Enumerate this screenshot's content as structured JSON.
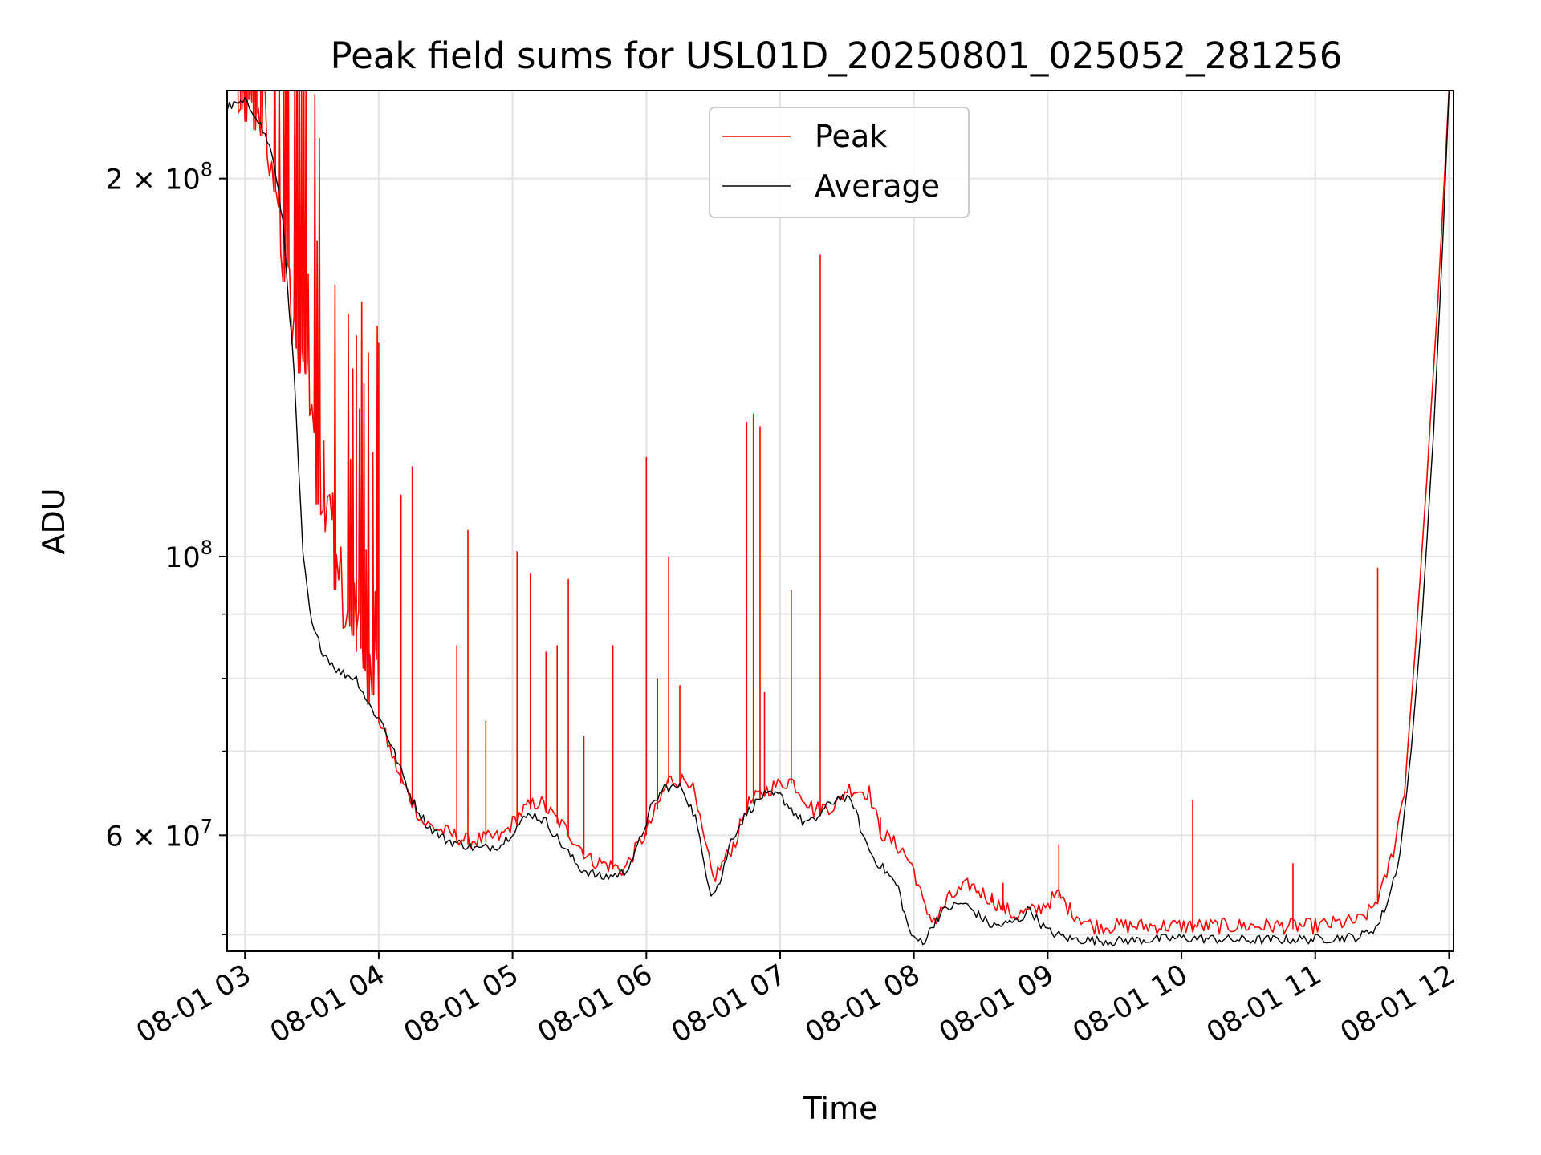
{
  "chart_data": {
    "type": "line",
    "title": "Peak field sums for USL01D_20250801_025052_281256",
    "xlabel": "Time",
    "ylabel": "ADU",
    "yscale": "log",
    "grid": true,
    "legend_position": "top-center",
    "xlim": [
      "2025-08-01 02:52",
      "2025-08-01 12:02"
    ],
    "ylim": [
      48500000,
      235000000
    ],
    "x_ticks": [
      {
        "value": "2025-08-01 03:00",
        "label": "08-01 03"
      },
      {
        "value": "2025-08-01 04:00",
        "label": "08-01 04"
      },
      {
        "value": "2025-08-01 05:00",
        "label": "08-01 05"
      },
      {
        "value": "2025-08-01 06:00",
        "label": "08-01 06"
      },
      {
        "value": "2025-08-01 07:00",
        "label": "08-01 07"
      },
      {
        "value": "2025-08-01 08:00",
        "label": "08-01 08"
      },
      {
        "value": "2025-08-01 09:00",
        "label": "08-01 09"
      },
      {
        "value": "2025-08-01 10:00",
        "label": "08-01 10"
      },
      {
        "value": "2025-08-01 11:00",
        "label": "08-01 11"
      },
      {
        "value": "2025-08-01 12:00",
        "label": "08-01 12"
      }
    ],
    "y_ticks_major": [
      {
        "value": 60000000,
        "base": "6 × 10",
        "exp": "7"
      },
      {
        "value": 100000000,
        "base": "10",
        "exp": "8"
      },
      {
        "value": 200000000,
        "base": "2 × 10",
        "exp": "8"
      }
    ],
    "y_ticks_minor": [
      50000000,
      70000000,
      80000000,
      90000000
    ],
    "series": [
      {
        "name": "Peak",
        "color": "#ff0000",
        "baseline": [
          [
            "2025-08-01 02:52",
            230000000
          ],
          [
            "2025-08-01 03:00",
            230000000
          ],
          [
            "2025-08-01 03:10",
            215000000
          ],
          [
            "2025-08-01 03:20",
            160000000
          ],
          [
            "2025-08-01 03:30",
            120000000
          ],
          [
            "2025-08-01 03:40",
            95000000
          ],
          [
            "2025-08-01 03:50",
            84000000
          ],
          [
            "2025-08-01 04:00",
            74000000
          ],
          [
            "2025-08-01 04:10",
            66000000
          ],
          [
            "2025-08-01 04:20",
            61000000
          ],
          [
            "2025-08-01 04:40",
            59000000
          ],
          [
            "2025-08-01 04:55",
            59500000
          ],
          [
            "2025-08-01 05:05",
            62500000
          ],
          [
            "2025-08-01 05:12",
            63500000
          ],
          [
            "2025-08-01 05:25",
            60000000
          ],
          [
            "2025-08-01 05:35",
            57000000
          ],
          [
            "2025-08-01 05:50",
            56000000
          ],
          [
            "2025-08-01 06:00",
            60000000
          ],
          [
            "2025-08-01 06:10",
            66000000
          ],
          [
            "2025-08-01 06:20",
            66000000
          ],
          [
            "2025-08-01 06:25",
            60000000
          ],
          [
            "2025-08-01 06:30",
            55000000
          ],
          [
            "2025-08-01 06:40",
            59000000
          ],
          [
            "2025-08-01 06:45",
            63000000
          ],
          [
            "2025-08-01 06:55",
            65000000
          ],
          [
            "2025-08-01 07:05",
            66000000
          ],
          [
            "2025-08-01 07:15",
            62500000
          ],
          [
            "2025-08-01 07:25",
            63000000
          ],
          [
            "2025-08-01 07:30",
            65000000
          ],
          [
            "2025-08-01 07:40",
            64500000
          ],
          [
            "2025-08-01 07:45",
            60000000
          ],
          [
            "2025-08-01 07:55",
            58000000
          ],
          [
            "2025-08-01 08:00",
            56000000
          ],
          [
            "2025-08-01 08:05",
            52000000
          ],
          [
            "2025-08-01 08:10",
            51000000
          ],
          [
            "2025-08-01 08:15",
            53000000
          ],
          [
            "2025-08-01 08:25",
            54500000
          ],
          [
            "2025-08-01 08:35",
            53000000
          ],
          [
            "2025-08-01 08:45",
            51500000
          ],
          [
            "2025-08-01 08:55",
            52000000
          ],
          [
            "2025-08-01 09:05",
            53500000
          ],
          [
            "2025-08-01 09:10",
            52000000
          ],
          [
            "2025-08-01 09:20",
            50500000
          ],
          [
            "2025-08-01 10:00",
            50500000
          ],
          [
            "2025-08-01 11:00",
            50500000
          ],
          [
            "2025-08-01 11:20",
            51000000
          ],
          [
            "2025-08-01 11:25",
            52000000
          ],
          [
            "2025-08-01 11:30",
            54000000
          ],
          [
            "2025-08-01 11:35",
            58000000
          ],
          [
            "2025-08-01 11:40",
            65000000
          ],
          [
            "2025-08-01 11:45",
            85000000
          ],
          [
            "2025-08-01 11:50",
            115000000
          ],
          [
            "2025-08-01 11:55",
            160000000
          ],
          [
            "2025-08-01 12:00",
            235000000
          ]
        ],
        "spikes": [
          [
            "2025-08-01 03:50",
            150000000
          ],
          [
            "2025-08-01 04:00",
            148000000
          ],
          [
            "2025-08-01 04:10",
            112000000
          ],
          [
            "2025-08-01 04:15",
            118000000
          ],
          [
            "2025-08-01 04:35",
            85000000
          ],
          [
            "2025-08-01 04:40",
            105000000
          ],
          [
            "2025-08-01 04:48",
            74000000
          ],
          [
            "2025-08-01 05:02",
            101000000
          ],
          [
            "2025-08-01 05:08",
            97000000
          ],
          [
            "2025-08-01 05:15",
            84000000
          ],
          [
            "2025-08-01 05:20",
            85000000
          ],
          [
            "2025-08-01 05:25",
            96000000
          ],
          [
            "2025-08-01 05:32",
            72000000
          ],
          [
            "2025-08-01 05:45",
            85000000
          ],
          [
            "2025-08-01 06:00",
            120000000
          ],
          [
            "2025-08-01 06:05",
            80000000
          ],
          [
            "2025-08-01 06:10",
            100000000
          ],
          [
            "2025-08-01 06:15",
            79000000
          ],
          [
            "2025-08-01 06:45",
            128000000
          ],
          [
            "2025-08-01 06:48",
            130000000
          ],
          [
            "2025-08-01 06:51",
            127000000
          ],
          [
            "2025-08-01 06:53",
            78000000
          ],
          [
            "2025-08-01 07:05",
            94000000
          ],
          [
            "2025-08-01 07:18",
            174000000
          ],
          [
            "2025-08-01 07:18",
            96000000
          ],
          [
            "2025-08-01 07:45",
            62000000
          ],
          [
            "2025-08-01 08:35",
            54000000
          ],
          [
            "2025-08-01 08:40",
            55000000
          ],
          [
            "2025-08-01 09:05",
            59000000
          ],
          [
            "2025-08-01 10:05",
            64000000
          ],
          [
            "2025-08-01 10:50",
            57000000
          ],
          [
            "2025-08-01 11:28",
            98000000
          ]
        ]
      },
      {
        "name": "Average",
        "color": "#000000",
        "points": [
          [
            "2025-08-01 02:52",
            228000000
          ],
          [
            "2025-08-01 03:00",
            230000000
          ],
          [
            "2025-08-01 03:05",
            225000000
          ],
          [
            "2025-08-01 03:12",
            210000000
          ],
          [
            "2025-08-01 03:17",
            185000000
          ],
          [
            "2025-08-01 03:22",
            140000000
          ],
          [
            "2025-08-01 03:26",
            100000000
          ],
          [
            "2025-08-01 03:30",
            88000000
          ],
          [
            "2025-08-01 03:35",
            84000000
          ],
          [
            "2025-08-01 03:42",
            81000000
          ],
          [
            "2025-08-01 03:50",
            80000000
          ],
          [
            "2025-08-01 03:56",
            76000000
          ],
          [
            "2025-08-01 04:02",
            73500000
          ],
          [
            "2025-08-01 04:08",
            69000000
          ],
          [
            "2025-08-01 04:15",
            64000000
          ],
          [
            "2025-08-01 04:22",
            61000000
          ],
          [
            "2025-08-01 04:30",
            59500000
          ],
          [
            "2025-08-01 04:45",
            58500000
          ],
          [
            "2025-08-01 04:55",
            59000000
          ],
          [
            "2025-08-01 05:02",
            61000000
          ],
          [
            "2025-08-01 05:08",
            62500000
          ],
          [
            "2025-08-01 05:15",
            61500000
          ],
          [
            "2025-08-01 05:22",
            59000000
          ],
          [
            "2025-08-01 05:30",
            56500000
          ],
          [
            "2025-08-01 05:40",
            55500000
          ],
          [
            "2025-08-01 05:50",
            56000000
          ],
          [
            "2025-08-01 05:55",
            58000000
          ],
          [
            "2025-08-01 06:02",
            63000000
          ],
          [
            "2025-08-01 06:08",
            65500000
          ],
          [
            "2025-08-01 06:16",
            65500000
          ],
          [
            "2025-08-01 06:22",
            62000000
          ],
          [
            "2025-08-01 06:25",
            58000000
          ],
          [
            "2025-08-01 06:29",
            54000000
          ],
          [
            "2025-08-01 06:33",
            55000000
          ],
          [
            "2025-08-01 06:38",
            59500000
          ],
          [
            "2025-08-01 06:45",
            62500000
          ],
          [
            "2025-08-01 06:52",
            64500000
          ],
          [
            "2025-08-01 07:00",
            64500000
          ],
          [
            "2025-08-01 07:05",
            63000000
          ],
          [
            "2025-08-01 07:10",
            61500000
          ],
          [
            "2025-08-01 07:15",
            61500000
          ],
          [
            "2025-08-01 07:20",
            63000000
          ],
          [
            "2025-08-01 07:27",
            64500000
          ],
          [
            "2025-08-01 07:33",
            63500000
          ],
          [
            "2025-08-01 07:37",
            60000000
          ],
          [
            "2025-08-01 07:42",
            57500000
          ],
          [
            "2025-08-01 07:48",
            56000000
          ],
          [
            "2025-08-01 07:53",
            54500000
          ],
          [
            "2025-08-01 07:57",
            51000000
          ],
          [
            "2025-08-01 08:00",
            49500000
          ],
          [
            "2025-08-01 08:05",
            49500000
          ],
          [
            "2025-08-01 08:10",
            51500000
          ],
          [
            "2025-08-01 08:15",
            52500000
          ],
          [
            "2025-08-01 08:22",
            53000000
          ],
          [
            "2025-08-01 08:28",
            52000000
          ],
          [
            "2025-08-01 08:35",
            50800000
          ],
          [
            "2025-08-01 08:42",
            51000000
          ],
          [
            "2025-08-01 08:48",
            51500000
          ],
          [
            "2025-08-01 08:52",
            52500000
          ],
          [
            "2025-08-01 08:55",
            51500000
          ],
          [
            "2025-08-01 09:00",
            50300000
          ],
          [
            "2025-08-01 09:10",
            49600000
          ],
          [
            "2025-08-01 09:30",
            49400000
          ],
          [
            "2025-08-01 10:00",
            49700000
          ],
          [
            "2025-08-01 10:30",
            49500000
          ],
          [
            "2025-08-01 11:00",
            49600000
          ],
          [
            "2025-08-01 11:20",
            49800000
          ],
          [
            "2025-08-01 11:28",
            50800000
          ],
          [
            "2025-08-01 11:33",
            53500000
          ],
          [
            "2025-08-01 11:38",
            58000000
          ],
          [
            "2025-08-01 11:43",
            70000000
          ],
          [
            "2025-08-01 11:48",
            90000000
          ],
          [
            "2025-08-01 11:53",
            125000000
          ],
          [
            "2025-08-01 11:57",
            175000000
          ],
          [
            "2025-08-01 12:00",
            235000000
          ]
        ]
      }
    ]
  }
}
